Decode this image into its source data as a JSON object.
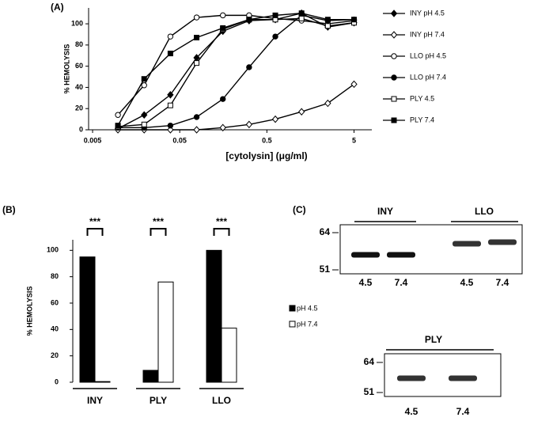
{
  "chart_data": [
    {
      "type": "line",
      "panel_label": "(A)",
      "y_label": "% HEMOLYSIS",
      "x_label": "[cytolysin] (μg/ml)",
      "xscale": "log",
      "x": [
        0.009765625,
        0.01953125,
        0.0390625,
        0.078125,
        0.15625,
        0.3125,
        0.625,
        1.25,
        2.5,
        5
      ],
      "xlim": [
        0.0045,
        8
      ],
      "xticks": [
        0.005,
        0.05,
        0.5,
        5
      ],
      "ylim": [
        0,
        115
      ],
      "yticks": [
        0,
        20,
        40,
        60,
        80,
        100
      ],
      "series": [
        {
          "name": "INY pH 4.5",
          "color": "#000000",
          "marker": "diamond",
          "filled": true,
          "values": [
            1,
            14,
            33,
            68,
            93,
            103,
            104,
            110,
            97,
            101
          ]
        },
        {
          "name": "INY pH 7.4",
          "color": "#000000",
          "marker": "diamond",
          "filled": false,
          "values": [
            0,
            0,
            0,
            0,
            2,
            5,
            10,
            17,
            25,
            43
          ]
        },
        {
          "name": "LLO pH 4.5",
          "color": "#000000",
          "marker": "circle",
          "filled": false,
          "values": [
            14,
            42,
            88,
            106,
            108,
            108,
            105,
            103,
            100,
            103
          ]
        },
        {
          "name": "LLO pH 7.4",
          "color": "#000000",
          "marker": "circle",
          "filled": true,
          "values": [
            2,
            2,
            4,
            12,
            29,
            59,
            88,
            108,
            103,
            104
          ]
        },
        {
          "name": "PLY 4.5",
          "color": "#000000",
          "marker": "square",
          "filled": false,
          "values": [
            3,
            5,
            23,
            63,
            95,
            104,
            104,
            105,
            98,
            101
          ]
        },
        {
          "name": "PLY 7.4",
          "color": "#000000",
          "marker": "square",
          "filled": true,
          "values": [
            4,
            48,
            72,
            87,
            96,
            104,
            108,
            110,
            104,
            104
          ]
        }
      ]
    },
    {
      "type": "bar",
      "panel_label": "(B)",
      "y_label": "% HEMOLYSIS",
      "categories": [
        "INY",
        "PLY",
        "LLO"
      ],
      "annotations": [
        "***",
        "***",
        "***"
      ],
      "ylim": [
        0,
        108
      ],
      "yticks": [
        0,
        20,
        40,
        60,
        80,
        100
      ],
      "series": [
        {
          "name": "pH 4.5",
          "color": "#000000",
          "values": [
            95,
            9,
            100
          ]
        },
        {
          "name": "pH 7.4",
          "color": "#ffffff",
          "values": [
            0.5,
            76,
            41
          ]
        }
      ]
    }
  ],
  "blots_panel_label": "(C)",
  "blots": [
    {
      "markers": [
        "64",
        "51"
      ],
      "groups": [
        {
          "label": "INY",
          "lanes": [
            "4.5",
            "7.4"
          ]
        },
        {
          "label": "LLO",
          "lanes": [
            "4.5",
            "7.4"
          ]
        }
      ]
    },
    {
      "markers": [
        "64",
        "51"
      ],
      "groups": [
        {
          "label": "PLY",
          "lanes": [
            "4.5",
            "7.4"
          ]
        }
      ]
    }
  ]
}
